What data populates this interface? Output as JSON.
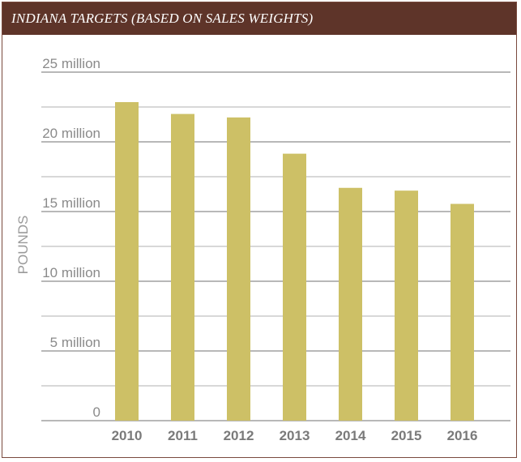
{
  "chart_data": {
    "type": "bar",
    "title": "INDIANA TARGETS (BASED ON SALES WEIGHTS)",
    "xlabel": "",
    "ylabel": "POUNDS",
    "categories": [
      "2010",
      "2011",
      "2012",
      "2013",
      "2014",
      "2015",
      "2016"
    ],
    "values": [
      22850000,
      22000000,
      21750000,
      19150000,
      16700000,
      16500000,
      15550000
    ],
    "ylim": [
      0,
      25000000
    ],
    "yticks": [
      0,
      5000000,
      10000000,
      15000000,
      20000000,
      25000000
    ],
    "ytick_labels": [
      "0",
      "5 million",
      "10 million",
      "15 million",
      "20 million",
      "25 million"
    ],
    "minor_gridlines": [
      2500000,
      7500000,
      12500000,
      17500000,
      22500000
    ],
    "grid": true,
    "colors": {
      "bar": "#cdc066",
      "header": "#5e3429",
      "grid": "#a8a8a8"
    }
  }
}
